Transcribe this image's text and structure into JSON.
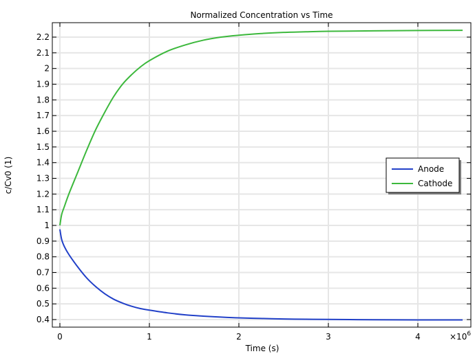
{
  "chart_data": {
    "type": "line",
    "title": "Normalized Concentration vs Time",
    "xlabel": "Time (s)",
    "ylabel": "c/Cv0 (1)",
    "x_multiplier": "×10^6",
    "x_multiplier_base": "×10",
    "x_multiplier_exp": "6",
    "xlim": [
      -0.08,
      4.6
    ],
    "ylim": [
      0.35,
      2.29
    ],
    "xticks": [
      0,
      1,
      2,
      3,
      4
    ],
    "xtick_labels": [
      "0",
      "1",
      "2",
      "3",
      "4"
    ],
    "yticks": [
      0.4,
      0.5,
      0.6,
      0.7,
      0.8,
      0.9,
      1.0,
      1.1,
      1.2,
      1.3,
      1.4,
      1.5,
      1.6,
      1.7,
      1.8,
      1.9,
      2.0,
      2.1,
      2.2
    ],
    "ytick_labels": [
      "0.4",
      "0.5",
      "0.6",
      "0.7",
      "0.8",
      "0.9",
      "1",
      "1.1",
      "1.2",
      "1.3",
      "1.4",
      "1.5",
      "1.6",
      "1.7",
      "1.8",
      "1.9",
      "2",
      "2.1",
      "2.2"
    ],
    "grid": true,
    "legend_position": "right-center",
    "x": [
      0,
      0.02,
      0.05,
      0.1,
      0.2,
      0.3,
      0.4,
      0.5,
      0.6,
      0.7,
      0.8,
      0.9,
      1.0,
      1.2,
      1.4,
      1.6,
      1.8,
      2.0,
      2.25,
      2.5,
      2.75,
      3.0,
      3.5,
      4.0,
      4.5
    ],
    "series": [
      {
        "name": "Anode",
        "color": "#2140c8",
        "values": [
          0.975,
          0.91,
          0.865,
          0.815,
          0.735,
          0.665,
          0.61,
          0.565,
          0.53,
          0.505,
          0.485,
          0.47,
          0.46,
          0.443,
          0.43,
          0.422,
          0.416,
          0.411,
          0.407,
          0.404,
          0.402,
          0.401,
          0.399,
          0.398,
          0.398
        ]
      },
      {
        "name": "Cathode",
        "color": "#3cb83c",
        "values": [
          1.0,
          1.07,
          1.12,
          1.2,
          1.34,
          1.48,
          1.61,
          1.72,
          1.82,
          1.9,
          1.96,
          2.01,
          2.05,
          2.11,
          2.15,
          2.18,
          2.2,
          2.212,
          2.223,
          2.23,
          2.234,
          2.237,
          2.24,
          2.242,
          2.243
        ]
      }
    ]
  },
  "legend": {
    "items": [
      {
        "label": "Anode",
        "color": "#2140c8"
      },
      {
        "label": "Cathode",
        "color": "#3cb83c"
      }
    ]
  }
}
